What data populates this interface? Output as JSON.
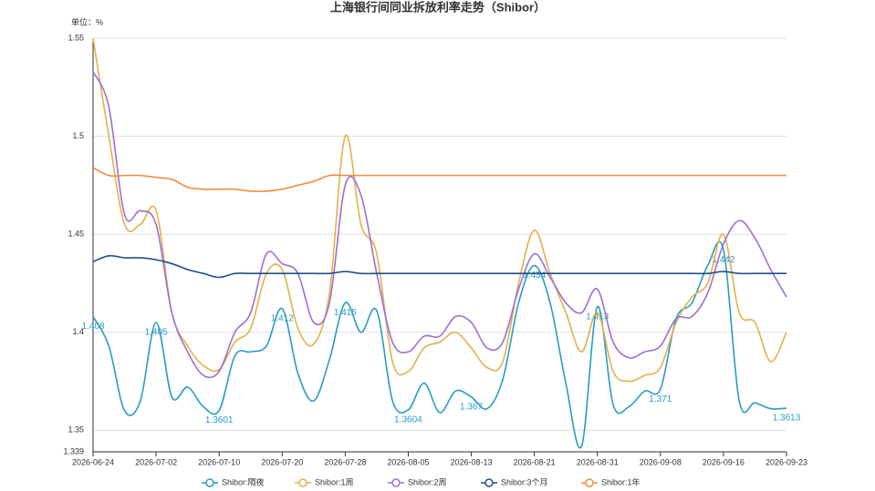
{
  "chart_data": {
    "type": "line",
    "title": "上海银行间同业拆放利率走势（Shibor）",
    "y_unit_label": "单位：%",
    "categories": [
      "2026-06-24",
      null,
      null,
      null,
      "2026-07-02",
      null,
      null,
      null,
      "2026-07-10",
      null,
      null,
      null,
      "2026-07-20",
      null,
      null,
      null,
      "2026-07-28",
      null,
      null,
      null,
      "2026-08-05",
      null,
      null,
      null,
      "2026-08-13",
      null,
      null,
      null,
      "2026-08-21",
      null,
      null,
      null,
      "2026-08-31",
      null,
      null,
      null,
      "2026-09-08",
      null,
      null,
      null,
      "2026-09-16",
      null,
      null,
      null,
      "2026-09-23"
    ],
    "ylim": [
      1.339,
      1.55
    ],
    "yticks": [
      1.339,
      1.35,
      1.4,
      1.45,
      1.5,
      1.55
    ],
    "grid": true,
    "legend": "bottom",
    "series": [
      {
        "name": "Shibor:隔夜",
        "color": "#2a9bc4",
        "values": [
          1.408,
          1.393,
          1.36,
          1.365,
          1.405,
          1.367,
          1.372,
          1.362,
          1.3601,
          1.388,
          1.39,
          1.393,
          1.412,
          1.379,
          1.365,
          1.386,
          1.415,
          1.4,
          1.411,
          1.365,
          1.3604,
          1.374,
          1.359,
          1.37,
          1.367,
          1.361,
          1.376,
          1.415,
          1.434,
          1.415,
          1.374,
          1.342,
          1.413,
          1.363,
          1.362,
          1.37,
          1.371,
          1.407,
          1.415,
          1.434,
          1.442,
          1.365,
          1.364,
          1.361,
          1.3613
        ],
        "value_labels": [
          "1.408",
          null,
          null,
          null,
          "1.405",
          null,
          null,
          null,
          "1.3601",
          null,
          null,
          null,
          "1.412",
          null,
          null,
          null,
          "1.415",
          null,
          null,
          null,
          "1.3604",
          null,
          null,
          null,
          "1.367",
          null,
          null,
          null,
          "1.434",
          null,
          null,
          null,
          "1.413",
          null,
          null,
          null,
          "1.371",
          null,
          null,
          null,
          "1.442",
          null,
          null,
          null,
          "1.3613"
        ]
      },
      {
        "name": "Shibor:1周",
        "color": "#e3b04b",
        "values": [
          1.55,
          1.5,
          1.455,
          1.455,
          1.462,
          1.41,
          1.393,
          1.383,
          1.381,
          1.395,
          1.402,
          1.43,
          1.432,
          1.402,
          1.394,
          1.42,
          1.5,
          1.455,
          1.44,
          1.385,
          1.38,
          1.392,
          1.395,
          1.4,
          1.392,
          1.382,
          1.385,
          1.425,
          1.452,
          1.43,
          1.41,
          1.39,
          1.41,
          1.38,
          1.375,
          1.378,
          1.382,
          1.405,
          1.418,
          1.425,
          1.45,
          1.41,
          1.405,
          1.385,
          1.4
        ]
      },
      {
        "name": "Shibor:2周",
        "color": "#9b6fd6",
        "values": [
          1.533,
          1.515,
          1.46,
          1.462,
          1.455,
          1.41,
          1.39,
          1.378,
          1.38,
          1.4,
          1.41,
          1.44,
          1.435,
          1.43,
          1.405,
          1.415,
          1.475,
          1.47,
          1.43,
          1.395,
          1.39,
          1.398,
          1.398,
          1.408,
          1.405,
          1.392,
          1.395,
          1.422,
          1.44,
          1.428,
          1.415,
          1.41,
          1.422,
          1.395,
          1.387,
          1.39,
          1.393,
          1.407,
          1.408,
          1.42,
          1.445,
          1.457,
          1.448,
          1.432,
          1.418
        ]
      },
      {
        "name": "Shibor:3个月",
        "color": "#1f4e8c",
        "values": [
          1.436,
          1.439,
          1.438,
          1.438,
          1.437,
          1.435,
          1.432,
          1.43,
          1.428,
          1.43,
          1.43,
          1.43,
          1.43,
          1.43,
          1.43,
          1.43,
          1.431,
          1.43,
          1.43,
          1.43,
          1.43,
          1.43,
          1.43,
          1.43,
          1.43,
          1.43,
          1.43,
          1.43,
          1.43,
          1.43,
          1.43,
          1.43,
          1.43,
          1.43,
          1.43,
          1.43,
          1.43,
          1.43,
          1.43,
          1.43,
          1.431,
          1.43,
          1.43,
          1.43,
          1.43
        ]
      },
      {
        "name": "Shibor:1年",
        "color": "#f08c3c",
        "values": [
          1.484,
          1.48,
          1.48,
          1.48,
          1.479,
          1.478,
          1.474,
          1.473,
          1.473,
          1.473,
          1.472,
          1.472,
          1.473,
          1.475,
          1.477,
          1.48,
          1.48,
          1.48,
          1.48,
          1.48,
          1.48,
          1.48,
          1.48,
          1.48,
          1.48,
          1.48,
          1.48,
          1.48,
          1.48,
          1.48,
          1.48,
          1.48,
          1.48,
          1.48,
          1.48,
          1.48,
          1.48,
          1.48,
          1.48,
          1.48,
          1.48,
          1.48,
          1.48,
          1.48,
          1.48
        ]
      }
    ]
  }
}
